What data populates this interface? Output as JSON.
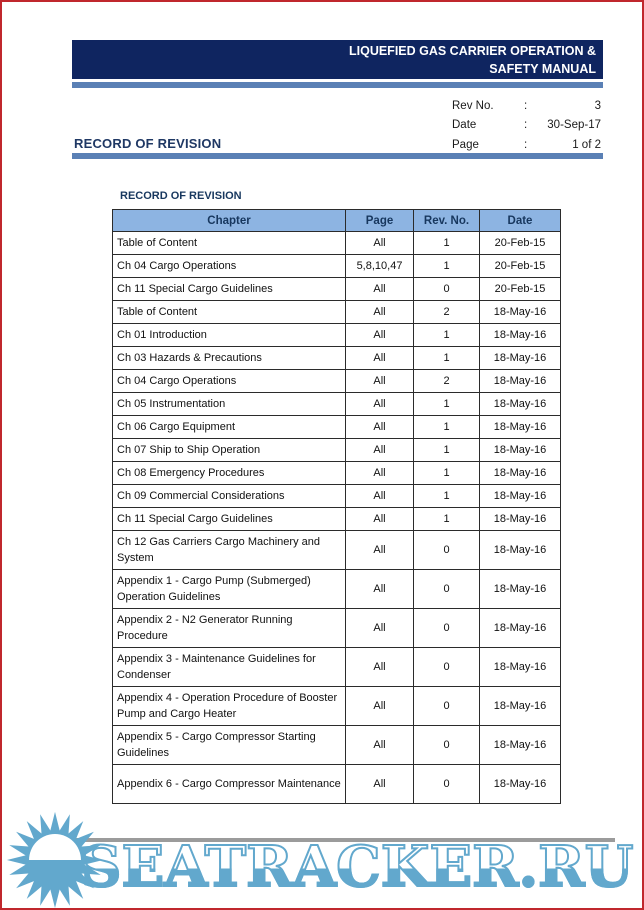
{
  "page": {
    "border_color": "#c0272d",
    "background": "#ffffff"
  },
  "header": {
    "banner": {
      "bg_color": "#0f2560",
      "title_line1": "LIQUEFIED GAS CARRIER OPERATION &",
      "title_line2": "SAFETY MANUAL"
    },
    "accent_bar_color": "#5a80b5",
    "meta": {
      "rev_label": "Rev No.",
      "rev_sep": ":",
      "rev_value": "3",
      "date_label": "Date",
      "date_sep": ":",
      "date_value": "30-Sep-17",
      "page_label": "Page",
      "page_sep": ":",
      "page_value": "1 of 2"
    },
    "section_title": "RECORD OF REVISION"
  },
  "content": {
    "table_title": "RECORD OF REVISION",
    "table": {
      "header_bg": "#8db4e2",
      "header_text_color": "#17375e",
      "columns": [
        "Chapter",
        "Page",
        "Rev. No.",
        "Date"
      ],
      "rows": [
        {
          "chapter": "Table of Content",
          "page": "All",
          "rev": "1",
          "date": "20-Feb-15"
        },
        {
          "chapter": "Ch 04 Cargo Operations",
          "page": "5,8,10,47",
          "rev": "1",
          "date": "20-Feb-15"
        },
        {
          "chapter": "Ch 11 Special Cargo Guidelines",
          "page": "All",
          "rev": "0",
          "date": "20-Feb-15"
        },
        {
          "chapter": "Table of Content",
          "page": "All",
          "rev": "2",
          "date": "18-May-16"
        },
        {
          "chapter": "Ch 01 Introduction",
          "page": "All",
          "rev": "1",
          "date": "18-May-16"
        },
        {
          "chapter": "Ch 03 Hazards & Precautions",
          "page": "All",
          "rev": "1",
          "date": "18-May-16"
        },
        {
          "chapter": "Ch 04 Cargo Operations",
          "page": "All",
          "rev": "2",
          "date": "18-May-16"
        },
        {
          "chapter": "Ch 05 Instrumentation",
          "page": "All",
          "rev": "1",
          "date": "18-May-16"
        },
        {
          "chapter": "Ch 06 Cargo Equipment",
          "page": "All",
          "rev": "1",
          "date": "18-May-16"
        },
        {
          "chapter": "Ch 07 Ship to Ship Operation",
          "page": "All",
          "rev": "1",
          "date": "18-May-16"
        },
        {
          "chapter": "Ch 08 Emergency Procedures",
          "page": "All",
          "rev": "1",
          "date": "18-May-16"
        },
        {
          "chapter": "Ch 09 Commercial Considerations",
          "page": "All",
          "rev": "1",
          "date": "18-May-16"
        },
        {
          "chapter": "Ch 11 Special Cargo Guidelines",
          "page": "All",
          "rev": "1",
          "date": "18-May-16"
        },
        {
          "chapter": "Ch 12 Gas Carriers Cargo Machinery and System",
          "page": "All",
          "rev": "0",
          "date": "18-May-16"
        },
        {
          "chapter": "Appendix 1 - Cargo Pump (Submerged) Operation Guidelines",
          "page": "All",
          "rev": "0",
          "date": "18-May-16"
        },
        {
          "chapter": "Appendix 2 - N2 Generator Running Procedure",
          "page": "All",
          "rev": "0",
          "date": "18-May-16"
        },
        {
          "chapter": "Appendix 3 - Maintenance Guidelines for Condenser",
          "page": "All",
          "rev": "0",
          "date": "18-May-16"
        },
        {
          "chapter": "Appendix 4 - Operation Procedure of Booster Pump and Cargo Heater",
          "page": "All",
          "rev": "0",
          "date": "18-May-16"
        },
        {
          "chapter": "Appendix 5 - Cargo Compressor Starting Guidelines",
          "page": "All",
          "rev": "0",
          "date": "18-May-16"
        },
        {
          "chapter": "Appendix 6 - Cargo Compressor Maintenance",
          "page": "All",
          "rev": "0",
          "date": "18-May-16"
        }
      ]
    }
  },
  "watermark": {
    "text": "SEATRACKER.RU",
    "color": "#62a8cd",
    "line_color": "#9b9b9b"
  }
}
